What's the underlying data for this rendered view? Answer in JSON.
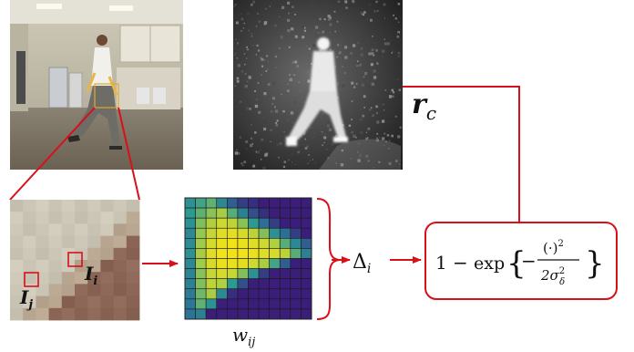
{
  "labels": {
    "r_symbol": "r",
    "r_sub": "c",
    "i_upper_sym": "I",
    "i_upper_sub": "i",
    "i_lower_sym": "I",
    "i_lower_sub": "j",
    "w_symbol": "w",
    "w_sub": "ij",
    "delta_symbol": "Δ",
    "delta_sub": "i"
  },
  "formula": {
    "one": "1",
    "minus": "−",
    "exp": "exp",
    "brace_open": "{",
    "brace_close": "}",
    "neg": "−",
    "numerator": "(·)",
    "numerator_power": "2",
    "denominator_two": "2σ",
    "denominator_power": "2",
    "denominator_sub": "δ"
  },
  "colors": {
    "arrow": "#d8101a",
    "heat_low": "#3b1e7a",
    "heat_mid": "#2d9a92",
    "heat_high": "#f2e21a"
  },
  "heatmap": {
    "rows": 12,
    "cols": 12,
    "values": [
      [
        0.45,
        0.55,
        0.62,
        0.4,
        0.2,
        0.1,
        0.05,
        0.0,
        0.0,
        0.0,
        0.0,
        0.0
      ],
      [
        0.5,
        0.62,
        0.72,
        0.8,
        0.6,
        0.35,
        0.15,
        0.05,
        0.0,
        0.0,
        0.0,
        0.0
      ],
      [
        0.45,
        0.7,
        0.82,
        0.9,
        0.86,
        0.72,
        0.5,
        0.25,
        0.1,
        0.0,
        0.0,
        0.0
      ],
      [
        0.4,
        0.75,
        0.88,
        0.95,
        0.96,
        0.92,
        0.85,
        0.7,
        0.45,
        0.25,
        0.1,
        0.0
      ],
      [
        0.42,
        0.78,
        0.92,
        0.98,
        1.0,
        0.98,
        0.95,
        0.9,
        0.82,
        0.6,
        0.4,
        0.2
      ],
      [
        0.45,
        0.8,
        0.95,
        1.0,
        1.0,
        1.0,
        0.98,
        0.95,
        0.92,
        0.85,
        0.6,
        0.35
      ],
      [
        0.4,
        0.78,
        0.92,
        0.98,
        0.98,
        0.96,
        0.9,
        0.8,
        0.55,
        0.2,
        0.0,
        0.0
      ],
      [
        0.38,
        0.72,
        0.88,
        0.92,
        0.88,
        0.7,
        0.45,
        0.1,
        0.0,
        0.0,
        0.0,
        0.0
      ],
      [
        0.35,
        0.7,
        0.86,
        0.82,
        0.5,
        0.15,
        0.0,
        0.0,
        0.0,
        0.0,
        0.0,
        0.0
      ],
      [
        0.32,
        0.66,
        0.8,
        0.4,
        0.05,
        0.0,
        0.0,
        0.0,
        0.0,
        0.0,
        0.0,
        0.0
      ],
      [
        0.3,
        0.62,
        0.45,
        0.0,
        0.0,
        0.0,
        0.0,
        0.0,
        0.0,
        0.0,
        0.0,
        0.0
      ],
      [
        0.28,
        0.35,
        0.0,
        0.0,
        0.0,
        0.0,
        0.0,
        0.0,
        0.0,
        0.0,
        0.0,
        0.0
      ]
    ]
  },
  "patch_grid": {
    "rows": 10,
    "cols": 10
  }
}
